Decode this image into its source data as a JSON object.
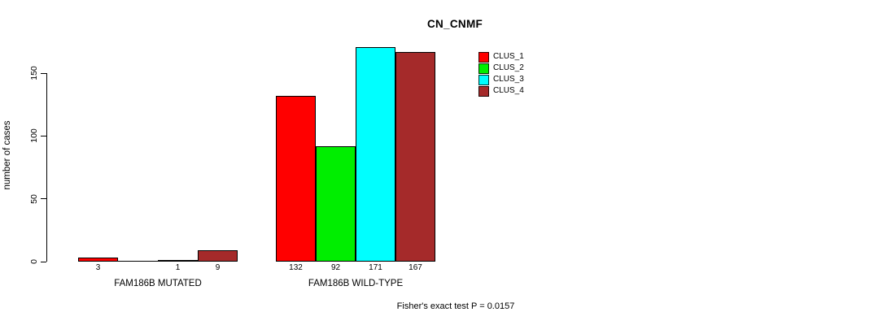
{
  "title": "CN_CNMF",
  "y_axis": {
    "label": "number of cases",
    "tick_labels": [
      "0",
      "50",
      "100",
      "150"
    ]
  },
  "footer": "Fisher's exact test P = 0.0157",
  "legend": {
    "items": [
      {
        "label": "CLUS_1",
        "color": "#FF0000"
      },
      {
        "label": "CLUS_2",
        "color": "#00EE00"
      },
      {
        "label": "CLUS_3",
        "color": "#00FFFF"
      },
      {
        "label": "CLUS_4",
        "color": "#A52A2A"
      }
    ]
  },
  "chart_data": {
    "type": "bar",
    "title": "CN_CNMF",
    "xlabel": "",
    "ylabel": "number of cases",
    "ylim": [
      0,
      175
    ],
    "yticks": [
      0,
      50,
      100,
      150
    ],
    "grid": false,
    "legend_position": "top-right",
    "categories": [
      "FAM186B MUTATED",
      "FAM186B WILD-TYPE"
    ],
    "series": [
      {
        "name": "CLUS_1",
        "color": "#FF0000",
        "values": [
          3,
          132
        ]
      },
      {
        "name": "CLUS_2",
        "color": "#00EE00",
        "values": [
          0,
          92
        ]
      },
      {
        "name": "CLUS_3",
        "color": "#00FFFF",
        "values": [
          1,
          171
        ]
      },
      {
        "name": "CLUS_4",
        "color": "#A52A2A",
        "values": [
          9,
          167
        ]
      }
    ],
    "bar_value_labels": [
      [
        "3",
        "",
        "1",
        "9"
      ],
      [
        "132",
        "92",
        "171",
        "167"
      ]
    ],
    "annotation": "Fisher's exact test P = 0.0157"
  }
}
